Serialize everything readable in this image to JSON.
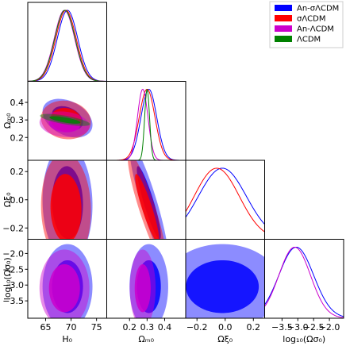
{
  "chart_data": {
    "type": "corner",
    "parameters": [
      "H0",
      "Om0",
      "Oxi0",
      "logOsig0"
    ],
    "axis_labels": {
      "H0": "H₀",
      "Om0": "Ωₘ₀",
      "Oxi0": "Ωξ₀",
      "logOsig0": "log₁₀(Ωσ₀)"
    },
    "ranges": {
      "H0": [
        61.5,
        77.0
      ],
      "Om0": [
        0.07,
        0.52
      ],
      "Oxi0": [
        -0.28,
        0.28
      ],
      "logOsig0": [
        -4.05,
        -1.55
      ]
    },
    "ticks": {
      "H0": [
        65,
        70,
        75
      ],
      "Om0": [
        0.2,
        0.3,
        0.4
      ],
      "Oxi0": [
        -0.2,
        0.0,
        0.2
      ],
      "logOsig0": [
        -3.5,
        -3.0,
        -2.5,
        -2.0
      ]
    },
    "tick_labels": {
      "H0": [
        "65",
        "70",
        "75"
      ],
      "Om0": [
        "0.2",
        "0.3",
        "0.4"
      ],
      "Oxi0": [
        "−0.2",
        "0.0",
        "0.2"
      ],
      "logOsig0": [
        "−3.5",
        "−3.0",
        "−2.5",
        "−2.0"
      ]
    },
    "series": [
      {
        "name": "An-σΛCDM",
        "color": "#0000ff",
        "params": [
          "H0",
          "Om0",
          "Oxi0",
          "logOsig0"
        ],
        "mean": {
          "H0": 69.3,
          "Om0": 0.31,
          "Oxi0": -0.02,
          "logOsig0": -3.05
        },
        "sd": {
          "H0": 2.0,
          "Om0": 0.045,
          "Oxi0": 0.17,
          "logOsig0": 0.55
        },
        "corr": {
          "H0|Om0": -0.35,
          "H0|Oxi0": -0.05,
          "Om0|Oxi0": -0.9,
          "H0|logOsig0": 0.0,
          "Om0|logOsig0": 0.0,
          "Oxi0|logOsig0": 0.0
        }
      },
      {
        "name": "σΛCDM",
        "color": "#ff0000",
        "params": [
          "H0",
          "Om0",
          "Oxi0"
        ],
        "mean": {
          "H0": 69.0,
          "Om0": 0.3,
          "Oxi0": -0.06
        },
        "sd": {
          "H0": 2.0,
          "Om0": 0.045,
          "Oxi0": 0.16
        },
        "corr": {
          "H0|Om0": -0.1,
          "H0|Oxi0": -0.05,
          "Om0|Oxi0": -0.9
        }
      },
      {
        "name": "An-ΛCDM",
        "color": "#cc00cc",
        "params": [
          "H0",
          "Om0",
          "logOsig0"
        ],
        "mean": {
          "H0": 68.7,
          "Om0": 0.275,
          "logOsig0": -3.1
        },
        "sd": {
          "H0": 2.0,
          "Om0": 0.03,
          "logOsig0": 0.5
        },
        "corr": {
          "H0|Om0": -0.15,
          "H0|logOsig0": 0.0,
          "Om0|logOsig0": 0.0
        }
      },
      {
        "name": "ΛCDM",
        "color": "#008000",
        "params": [
          "H0",
          "Om0"
        ],
        "mean": {
          "H0": 68.8,
          "Om0": 0.3
        },
        "sd": {
          "H0": 2.0,
          "Om0": 0.014
        },
        "corr": {
          "H0|Om0": -0.7
        }
      }
    ],
    "legend_position": "top-right",
    "grid": false
  }
}
